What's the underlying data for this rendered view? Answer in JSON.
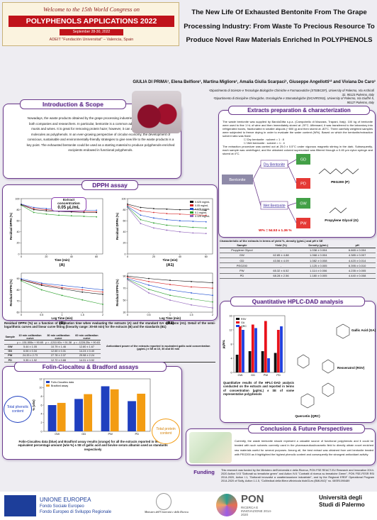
{
  "banner": {
    "welcome": "Welcome to the 15th World Congress on",
    "congress": "POLYPHENOLS APPLICATIONS 2022",
    "dates": "September 28-30, 2022",
    "venue": "ADEIT \"Fundación Universitat\" – Valencia, Spain"
  },
  "title": "The New Life Of Exhausted Bentonite From The Grape Processing Industry: From Waste To Precious Resource To Produce Novel Raw Materials Enriched In POLYPHENOLS",
  "authors": "GIULIA DI PRIMA¹, Elena Belfiore¹, Martina Migliore¹, Amalia Giulia Scarpaci¹, Giuseppe Angellotti¹² and Viviana De Caro¹",
  "affiliations": [
    "¹Dipartimento di Scienze e Tecnologie Biologiche Chimiche e Farmaceutiche (STEBICEF), University of Palermo, Via Archirafi 32, 90123 Palermo, Italy",
    "²Dipartimento di Discipline Chirurgiche, Oncologiche e Stomatologiche (DICHIRONS), University of Palermo, Via Giuffrè 5, 90127 Palermo, Italy"
  ],
  "intro": {
    "heading": "Introduction & Scope",
    "text": "Nowadays, the waste products obtained by the grape processing industries have gained the attention of both companies and researchers. In particular, bentonite is a common additive used to clarify and fine musts and wines. It is great for removing protein haze; however, it can also entrap such interesting molecules as polyphenols. In an ever-growing perspective of circular economy, the development of conscious, sustainable and environmentally-friendly strategies to give new life to the waste products is a key point. The exhausted bentonite could be used as a starting material to produce polyphenols-enriched excipients endowed in functional polyphenols."
  },
  "extracts": {
    "heading": "Extracts preparation & characterization",
    "text": "The waste bentonite was supplied by BaroloDitta s.p.a. (Campobello di Mazzara, Trapani, Italy). 100 kg of bentonite were used to fine 1 hL of wine and then immediately stored at -20°C. Afterward, it was transferred to the laboratory into refrigerated boxes, fractionated in smaller aliquots (~800 g) and then stored at -80°C. Three carefully weighted samples were subjected to freeze drying in order to evaluate the water content (W%). Based on which the bentonite/extraction solvent ratio was fixed:",
    "options": [
      "Dry bentonite : solvent = 1 : 8",
      "Wet bentonite : solvent = 1 : 4"
    ],
    "text2": "The extraction procedure was carried out at 25.0 ± 0.5°C under vigorous magnetic stirring in the dark. Subsequently, each sample was centrifuged, and the obtained colored supernatant was filtered through a 0.45 µm nylon syringe and stored at 4°C.",
    "diagram": {
      "bentonite": "Bentonite",
      "dry": "Dry Bentonite",
      "wet": "Wet Bentonite",
      "gd": "GD",
      "pd": "PD",
      "gw": "GW",
      "pw": "PW",
      "water": "W% = 54.53 ± 1.36 %",
      "peg": "PEG200 (P)",
      "pg": "Propylene Glycol (G)"
    }
  },
  "characteristics_table": {
    "caption": "Characteristic of the extracts in terms of yield %, density (g/mL) and pH ± SE",
    "header": [
      "Sample",
      "Yield (%)",
      "Density (g/mL)",
      "pH"
    ],
    "rows": [
      [
        "Propylene Glycol",
        "-",
        "1.038 ± 0.004",
        "6.665 ± 0.004"
      ],
      [
        "GW",
        "62.85 ± 4.88",
        "1.068 ± 0.004",
        "4.385 ± 0.007"
      ],
      [
        "GD",
        "43.56 ± 4.09",
        "1.082 ± 0.008",
        "4.420 ± 0.014"
      ],
      [
        "PEG200",
        "-",
        "1.125 ± 0.005",
        "6.395 ± 0.010"
      ],
      [
        "PW",
        "65.32 ± 6.52",
        "1.114 ± 0.006",
        "4.235 ± 0.005"
      ],
      [
        "PD",
        "68.28 ± 2.56",
        "1.180 ± 0.005",
        "4.440 ± 0.008"
      ]
    ]
  },
  "dpph": {
    "heading": "DPPH assay",
    "annotation_title": "Extract concentration",
    "annotation_value": "0.05 µL/mL",
    "caption": "Residual DPPH (%) as a function of incubation time when evaluating the extracts (A) and the standard GA solutions (A1). Detail of the semi-logarithmic curves and linear curve fitting (linearity range: 30-60 min) for the extracts (B) and the standards (B1)",
    "table": {
      "header": [
        "Sample",
        "10 min calibration curve",
        "30 min calibration curve",
        "60 min calibration curve",
        "Antioxidant power of the extracts reported in equivalent gallic acid concentration (µg/mL) ± SE at 10, 30 and 60 min"
      ],
      "equations": [
        "y = -151.555x + 90.65",
        "y = -1210.92x + 91.38",
        "y = -1228.25x + 90.63"
      ],
      "rows": [
        [
          "GW",
          "5.44 ± 1.05",
          "10.79 ± 1.46",
          "12.80 ± 1.67"
        ],
        [
          "GD",
          "6.06 ± 0.34",
          "12.60 ± 0.31",
          "14.24 ± 0.40"
        ],
        [
          "PW",
          "24.33 ± 2.73",
          "27.78 ± 2.37",
          "29.98 ± 2.24"
        ],
        [
          "PD",
          "9.35 ± 1.92",
          "12.72 ± 0.88",
          "14.31 ± 0.92"
        ]
      ]
    }
  },
  "hplc": {
    "heading": "Quantitative HPLC-DAD analysis",
    "caption": "Quantitative results of the HPLC-DAD analysis conducted on the extracts and reported in terms of concentration (µg/mL) ± SE of some representative polyphenols",
    "compounds": [
      "Gallic Acid (GA)",
      "Resveratrol (RSV)",
      "Quercetin (QRC)"
    ]
  },
  "folin": {
    "heading": "Folin-Ciocalteu & Bradford assays",
    "caption": "Folin-Ciocalteu data (blue) and Bradford assay results (orange) for all the extracts reported in terms of equivalent percentage amount (w/w %) ± SE of gallic acid and bovine serum albumin used as standards respectively",
    "callout_phenolic": "Total phenolic content",
    "callout_protein": "Total protein content"
  },
  "conclusion": {
    "heading": "Conclusion & Future Perspectives",
    "text": "Currently, the waste bentonite should represent a valuable source of functional polyphenols and it could be treated with such solvents currently used in the pharmaceutical/cosmetic field to directly obtain novel enriched raw materials useful for several purposes. Among all, the best extract was obtained from wet bentonite treated with PEG200 as it highlighted the highest phenolic content and consequently the strongest antioxidant activity."
  },
  "funding": {
    "heading": "Funding",
    "text": "This research was funded by the Ministero dell'Università e della Ricerca, PON FSE REACT-EU Research and Innovation 2014-2020 Action IV.5 \"Dottorati su tematiche green\" and Action IV.6 \"Contratti di ricerca su tematiche Green\", PON FSE-FESR RSI 2014-2020, Action I.1, \"Dottorati innovativi a caratterizzazione industriale\", and by the Regional ERDF Operational Program 2014-2020 of Sicily, Action 1.1.5, \"CoMedical della filiera vitivinicola biobGLes (BMLING)\" no. 08SR1090489"
  },
  "logos": {
    "eu": "UNIONE EUROPEA",
    "fse": "Fondo Sociale Europeo",
    "fesr": "Fondo Europeo di Sviluppo Regionale",
    "ministry": "Ministero dell'Università e della Ricerca",
    "pon": "PON",
    "pon_sub": "RICERCA E INNOVAZIONE 2014-2020",
    "unipa": "Università degli Studi di Palermo"
  },
  "chart_data": [
    {
      "type": "line",
      "label": "(A)",
      "xlabel": "Time (min)",
      "ylabel": "Residual DPPH (%)",
      "x": [
        0,
        10,
        20,
        30,
        40,
        50,
        60
      ],
      "xlim": [
        0,
        65
      ],
      "ylim": [
        0,
        100
      ],
      "xticks": [
        0,
        20,
        40,
        60
      ],
      "yticks": [
        0,
        20,
        40,
        60,
        80,
        100
      ],
      "series": [
        {
          "color": "#1f4fd1",
          "values": [
            90,
            84,
            82,
            81,
            80,
            79,
            79
          ]
        },
        {
          "color": "#d62728",
          "values": [
            89,
            82,
            80,
            78,
            77,
            77,
            76
          ]
        },
        {
          "color": "#2ca02c",
          "values": [
            88,
            75,
            72,
            70,
            69,
            68,
            67
          ]
        },
        {
          "color": "#111111",
          "values": [
            89,
            80,
            78,
            77,
            76,
            75,
            75
          ]
        }
      ]
    },
    {
      "type": "line",
      "label": "(A1)",
      "xlabel": "Time (min)",
      "ylabel": "Residual DPPH (%)",
      "x": [
        0,
        10,
        20,
        30,
        40,
        50,
        60
      ],
      "xlim": [
        0,
        65
      ],
      "ylim": [
        0,
        100
      ],
      "xticks": [
        0,
        20,
        40,
        60
      ],
      "yticks": [
        0,
        20,
        40,
        60,
        80,
        100
      ],
      "legend": "upper right",
      "series": [
        {
          "name": "0.025 mg/mL",
          "color": "#111111",
          "values": [
            90,
            84,
            82,
            81,
            80,
            80,
            79
          ]
        },
        {
          "name": "0.05 mg/mL",
          "color": "#d62728",
          "values": [
            88,
            78,
            75,
            73,
            72,
            71,
            70
          ]
        },
        {
          "name": "0.075 mg/mL",
          "color": "#1f4fd1",
          "values": [
            86,
            70,
            65,
            62,
            60,
            59,
            58
          ]
        },
        {
          "name": "0.1 mg/mL",
          "color": "#2ca02c",
          "values": [
            85,
            62,
            56,
            52,
            50,
            48,
            47
          ]
        },
        {
          "name": "0.125 mg/mL",
          "color": "#9467bd",
          "values": [
            84,
            55,
            47,
            43,
            40,
            38,
            37
          ]
        }
      ]
    },
    {
      "type": "line",
      "label": "(B)",
      "xlabel": "Log Time (min)",
      "ylabel": "Residual DPPH (%)",
      "x": [
        0,
        0.5,
        1,
        1.5,
        2
      ],
      "xlim": [
        0,
        2
      ],
      "ylim": [
        60,
        95
      ],
      "xticks": [
        0,
        0.5,
        1,
        1.5,
        2
      ],
      "yticks": [
        60,
        70,
        80,
        90
      ],
      "series": [
        {
          "color": "#1f4fd1",
          "values": [
            90,
            86,
            84,
            82,
            80
          ]
        },
        {
          "color": "#d62728",
          "values": [
            89,
            85,
            82,
            80,
            78
          ]
        },
        {
          "color": "#2ca02c",
          "values": [
            88,
            80,
            75,
            71,
            67
          ]
        },
        {
          "color": "#111111",
          "values": [
            89,
            84,
            81,
            78,
            76
          ]
        }
      ]
    },
    {
      "type": "line",
      "label": "(B1)",
      "xlabel": "Log Time (min)",
      "ylabel": "Residual DPPH (%)",
      "x": [
        0,
        0.5,
        1,
        1.5,
        2
      ],
      "xlim": [
        0,
        2
      ],
      "ylim": [
        30,
        95
      ],
      "xticks": [
        0,
        0.5,
        1,
        1.5,
        2
      ],
      "yticks": [
        30,
        50,
        70,
        90
      ],
      "series": [
        {
          "color": "#111111",
          "values": [
            90,
            86,
            83,
            81,
            79
          ]
        },
        {
          "color": "#d62728",
          "values": [
            88,
            81,
            76,
            72,
            70
          ]
        },
        {
          "color": "#1f4fd1",
          "values": [
            86,
            75,
            67,
            62,
            58
          ]
        },
        {
          "color": "#2ca02c",
          "values": [
            85,
            68,
            58,
            52,
            47
          ]
        },
        {
          "color": "#9467bd",
          "values": [
            84,
            62,
            50,
            42,
            37
          ]
        }
      ]
    },
    {
      "type": "bar",
      "ylabel": "µg/mL",
      "categories": [
        "GW",
        "GD",
        "PW",
        "PD"
      ],
      "ylim": [
        0,
        16
      ],
      "yticks": [
        0,
        4,
        8,
        12,
        16
      ],
      "legend": "upper left",
      "series": [
        {
          "name": "RSV",
          "color": "#111111",
          "values": [
            5,
            6,
            6,
            5.5
          ]
        },
        {
          "name": "GA",
          "color": "#e8121b",
          "values": [
            13,
            13.5,
            14.5,
            12
          ]
        },
        {
          "name": "QRC",
          "color": "#1f3fe0",
          "values": [
            12,
            12.5,
            4,
            13
          ]
        }
      ]
    },
    {
      "type": "bar",
      "ylabel": "% (w/w)",
      "categories": [
        "GW",
        "GD",
        "PW",
        "PD"
      ],
      "ylim": [
        0,
        12
      ],
      "yticks": [
        0,
        2,
        4,
        6,
        8,
        10,
        12
      ],
      "legend": "upper left",
      "series": [
        {
          "name": "Folin-Ciocalteu data",
          "color": "#1f3fbf",
          "values": [
            6.0,
            7.4,
            10.3,
            6.9
          ]
        },
        {
          "name": "Bradford assay",
          "color": "#f39c12",
          "values": [
            6.5,
            8.5,
            9.6,
            8.6
          ]
        }
      ]
    }
  ]
}
